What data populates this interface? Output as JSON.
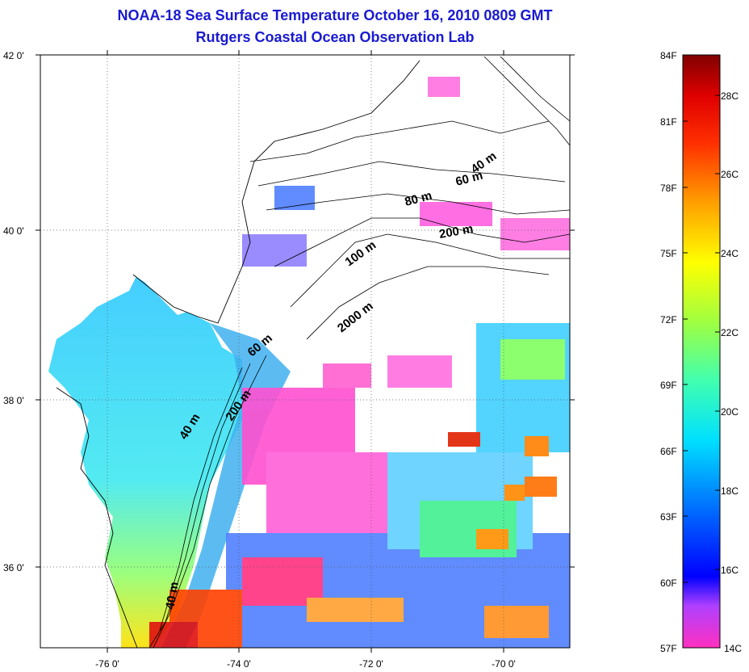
{
  "title": {
    "line1": "NOAA-18 Sea Surface Temperature October 16, 2010 0809 GMT",
    "line2": "Rutgers Coastal Ocean Observation Lab"
  },
  "map": {
    "lat_labels": [
      "42 0'",
      "40 0'",
      "38 0'",
      "36 0'"
    ],
    "lon_labels": [
      "-76 0'",
      "-74 0'",
      "-72 0'",
      "-70 0'"
    ],
    "depth_labels": [
      "40 m",
      "60 m",
      "80 m",
      "200 m",
      "100 m",
      "2000 m",
      "60 m",
      "200 m",
      "40 m",
      "40 m"
    ]
  },
  "colorbar": {
    "fahrenheit": [
      "84F",
      "81F",
      "78F",
      "75F",
      "72F",
      "69F",
      "66F",
      "63F",
      "60F",
      "57F"
    ],
    "celsius": [
      "28C",
      "26C",
      "24C",
      "22C",
      "20C",
      "18C",
      "16C",
      "14C"
    ],
    "colors": [
      "#ff00ff",
      "#b030ff",
      "#1010ff",
      "#00b0ff",
      "#00ffff",
      "#80ff80",
      "#ffff00",
      "#ff8800",
      "#ff0000",
      "#800000"
    ]
  }
}
